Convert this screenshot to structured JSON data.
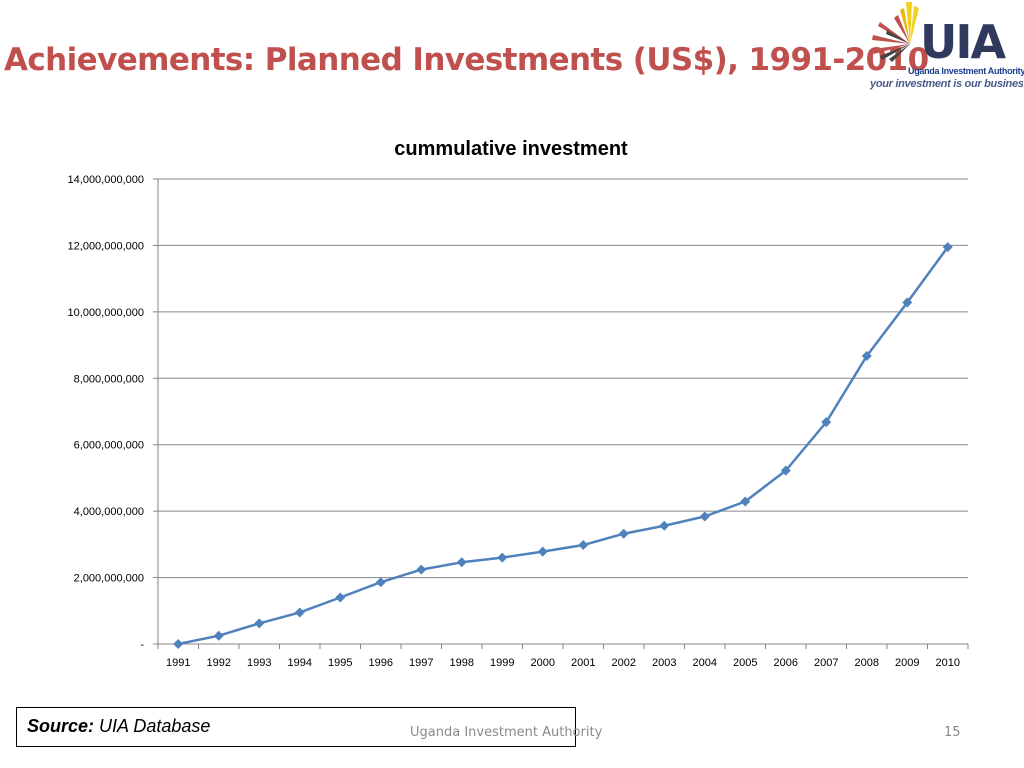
{
  "slide": {
    "title": "Achievements: Planned Investments (US$), 1991-2010",
    "logo": {
      "letters": "UIA",
      "subtitle": "Uganda Investment Authority",
      "tagline": "your investment is our business",
      "accent_color": "#c0504d",
      "brand_color": "#2f3a5e"
    }
  },
  "chart_data": {
    "type": "line",
    "title": "cummulative investment",
    "xlabel": "",
    "ylabel": "",
    "x": [
      "1991",
      "1992",
      "1993",
      "1994",
      "1995",
      "1996",
      "1997",
      "1998",
      "1999",
      "2000",
      "2001",
      "2002",
      "2003",
      "2004",
      "2005",
      "2006",
      "2007",
      "2008",
      "2009",
      "2010"
    ],
    "series": [
      {
        "color": "#4f81bd",
        "marker": "diamond",
        "values": [
          0,
          250000000,
          620000000,
          950000000,
          1400000000,
          1860000000,
          2240000000,
          2460000000,
          2600000000,
          2780000000,
          2980000000,
          3320000000,
          3560000000,
          3840000000,
          4290000000,
          5220000000,
          6680000000,
          8670000000,
          10280000000,
          11950000000
        ]
      }
    ],
    "ylim": [
      0,
      14000000000
    ],
    "y_ticks": [
      0,
      2000000000,
      4000000000,
      6000000000,
      8000000000,
      10000000000,
      12000000000,
      14000000000
    ],
    "y_tick_labels": [
      "-",
      "2,000,000,000",
      "4,000,000,000",
      "6,000,000,000",
      "8,000,000,000",
      "10,000,000,000",
      "12,000,000,000",
      "14,000,000,000"
    ],
    "grid": true,
    "legend": "none"
  },
  "footer": {
    "source_label": "Source:",
    "source_value": "UIA Database",
    "organization": "Uganda Investment Authority",
    "page_number": "15"
  }
}
